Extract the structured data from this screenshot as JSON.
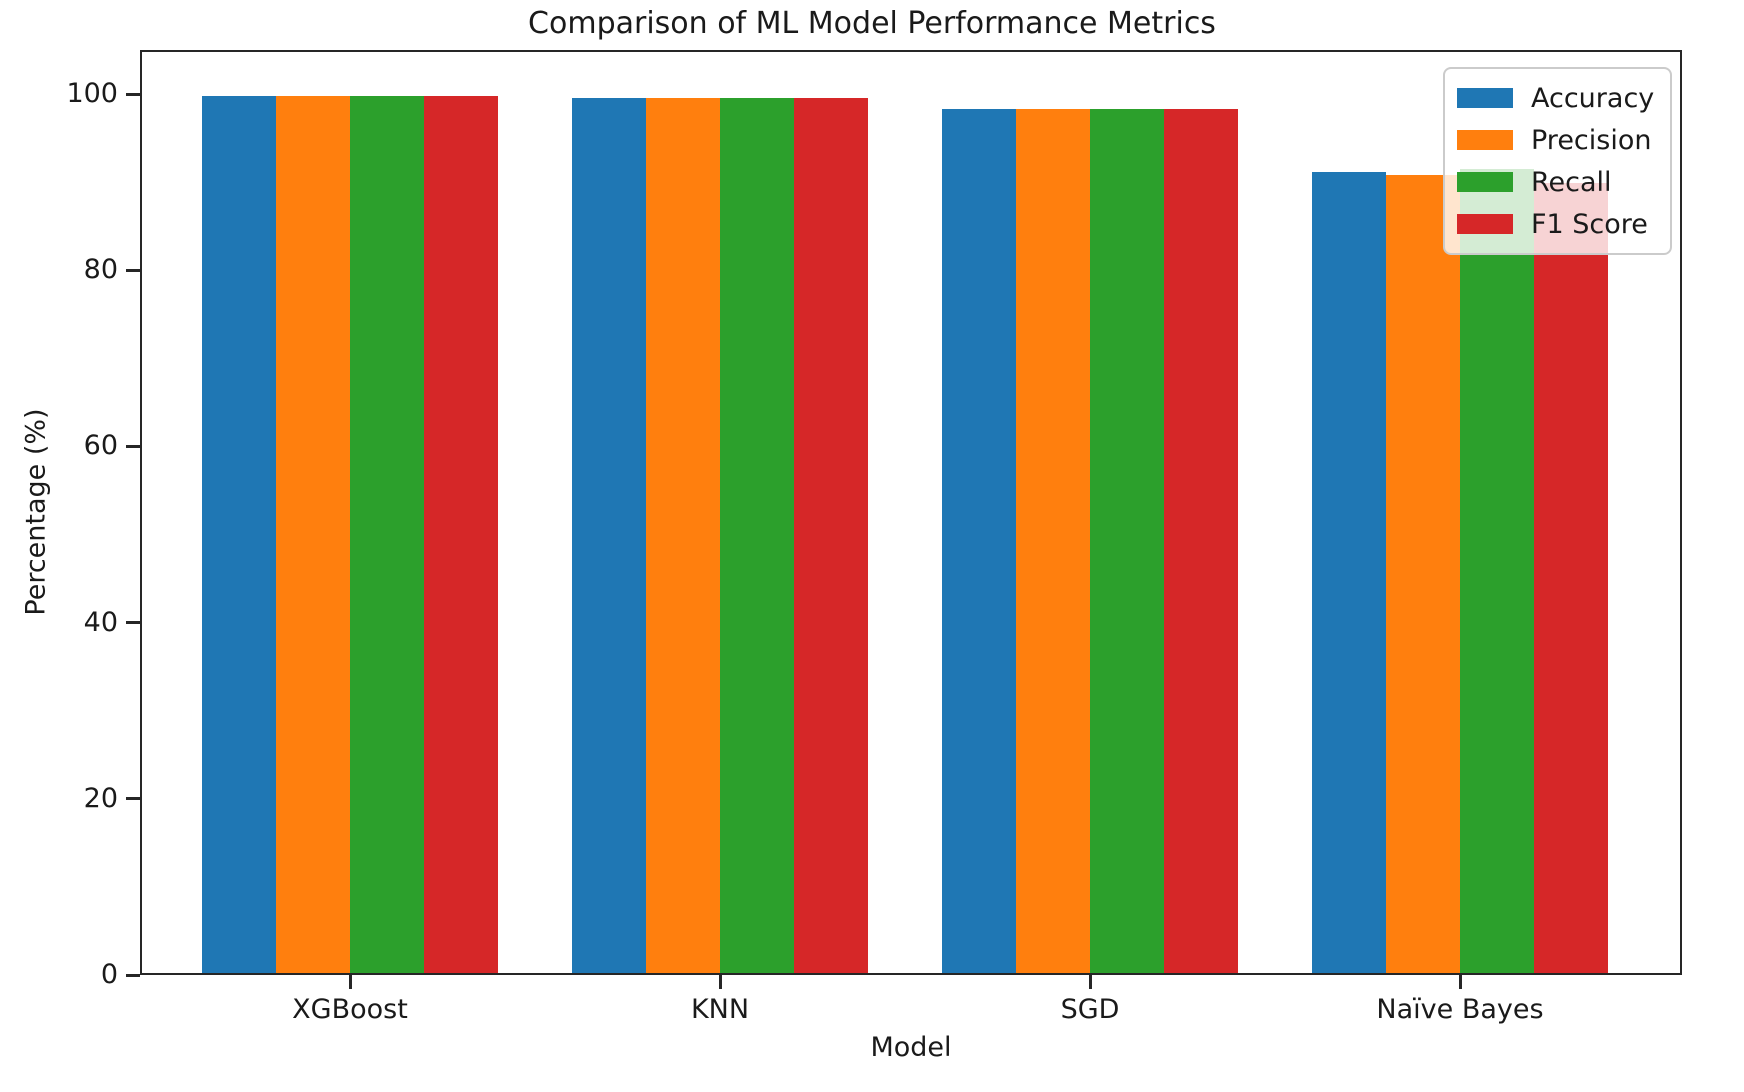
{
  "chart_data": {
    "type": "bar",
    "title": "Comparison of ML Model Performance Metrics",
    "xlabel": "Model",
    "ylabel": "Percentage (%)",
    "categories": [
      "XGBoost",
      "KNN",
      "SGD",
      "Naïve Bayes"
    ],
    "series": [
      {
        "name": "Accuracy",
        "color": "#1f77b4",
        "values": [
          99.8,
          99.6,
          98.3,
          91.1
        ]
      },
      {
        "name": "Precision",
        "color": "#ff7f0e",
        "values": [
          99.8,
          99.6,
          98.3,
          90.8
        ]
      },
      {
        "name": "Recall",
        "color": "#2ca02c",
        "values": [
          99.8,
          99.6,
          98.3,
          91.5
        ]
      },
      {
        "name": "F1 Score",
        "color": "#d62728",
        "values": [
          99.8,
          99.6,
          98.3,
          89.9
        ]
      }
    ],
    "ylim": [
      0,
      105
    ],
    "yticks": [
      0,
      20,
      40,
      60,
      80,
      100
    ],
    "legend_position": "upper right",
    "grid": false,
    "background_color": "#ffffff",
    "spine_color": "#262626"
  }
}
